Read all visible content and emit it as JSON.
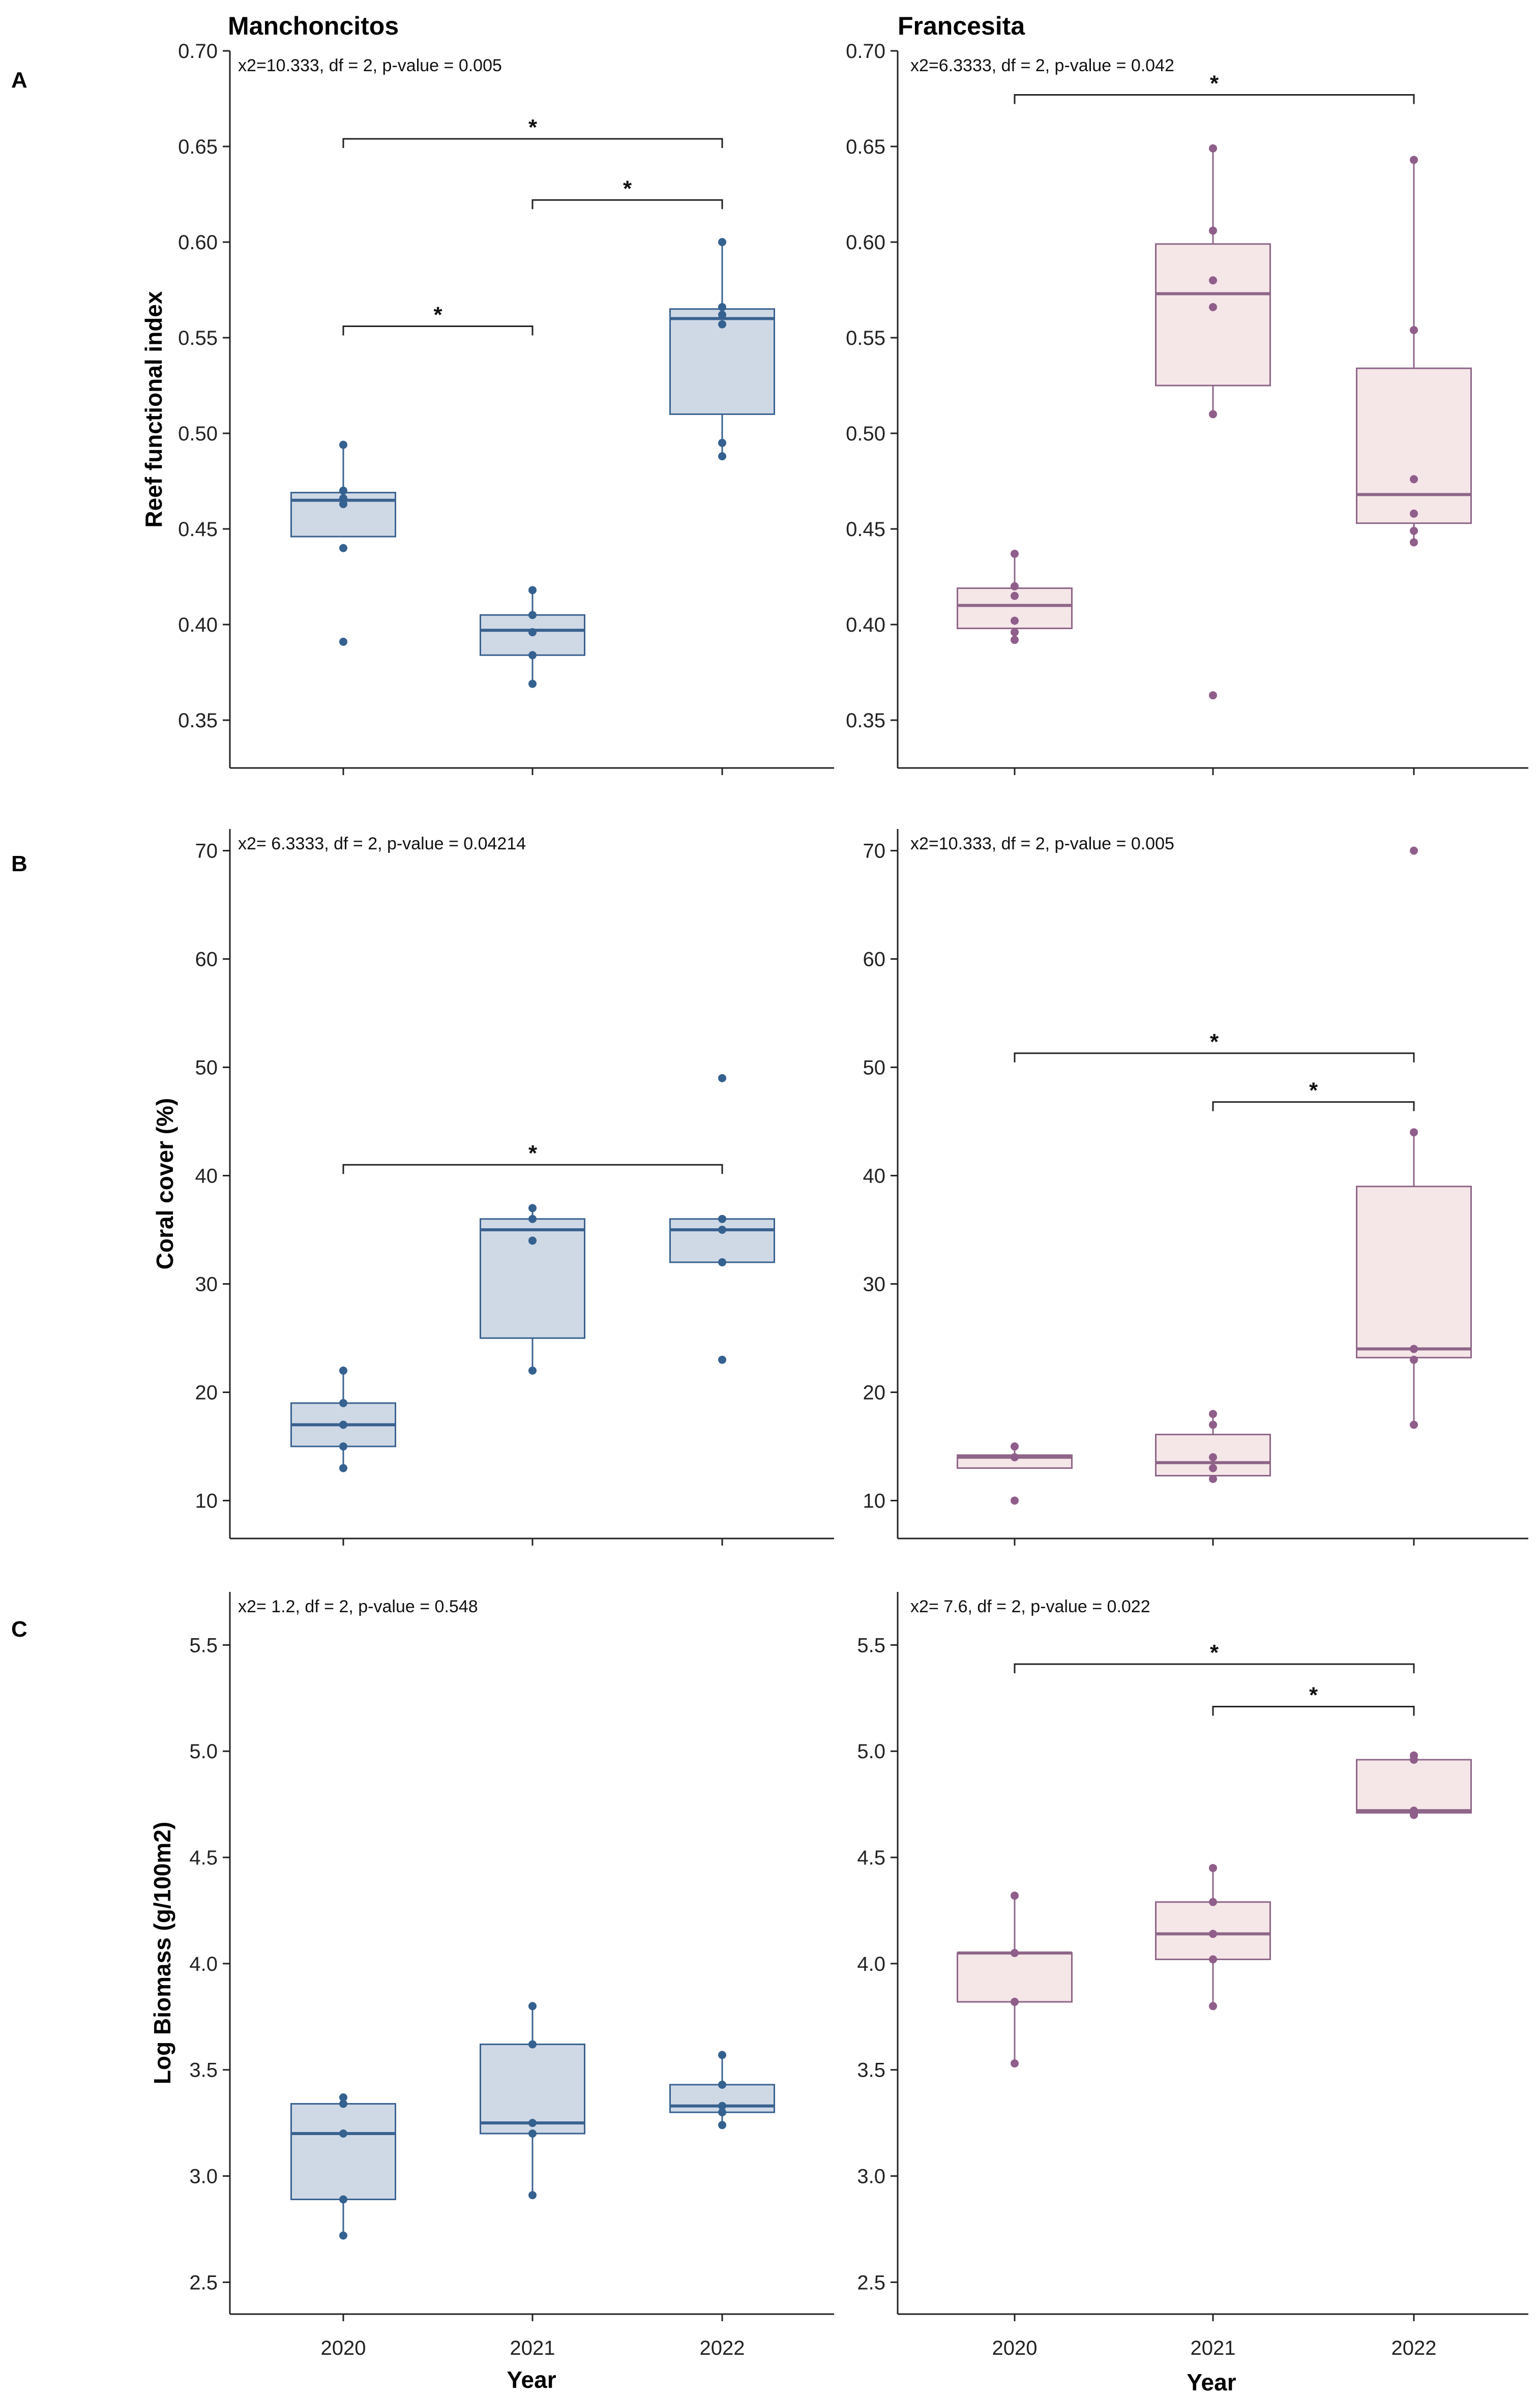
{
  "figure": {
    "col_titles": [
      "Manchoncitos",
      "Francesita"
    ],
    "row_labels": [
      "A",
      "B",
      "C"
    ],
    "xlabel": "Year",
    "colors": {
      "blue_stroke": "#3a6290",
      "blue_fill": "#cfd9e6",
      "blue_point": "#34618f",
      "pink_stroke": "#8e6688",
      "pink_fill": "#f5e6e8",
      "pink_point": "#8f5e8a"
    }
  },
  "chart_data": [
    {
      "id": "A-Manchoncitos",
      "type": "box",
      "row": 0,
      "col": 0,
      "palette": "blue",
      "stat": "x2=10.333, df = 2, p-value = 0.005",
      "ylabel": "Reef functional index",
      "ylim": [
        0.325,
        0.7
      ],
      "yticks": [
        0.35,
        0.4,
        0.45,
        0.5,
        0.55,
        0.6,
        0.65,
        0.7
      ],
      "ytick_labels": [
        "0.35",
        "0.40",
        "0.45",
        "0.50",
        "0.55",
        "0.60",
        "0.65",
        "0.70"
      ],
      "categories": [
        "2020",
        "2021",
        "2022"
      ],
      "show_xticks": false,
      "boxes": [
        {
          "cat": "2020",
          "q1": 0.446,
          "median": 0.465,
          "q3": 0.469,
          "whisker_low": 0.446,
          "whisker_high": 0.494,
          "points": [
            0.494,
            0.47,
            0.466,
            0.463,
            0.44,
            0.391
          ]
        },
        {
          "cat": "2021",
          "q1": 0.384,
          "median": 0.397,
          "q3": 0.405,
          "whisker_low": 0.369,
          "whisker_high": 0.418,
          "points": [
            0.418,
            0.405,
            0.396,
            0.384,
            0.369
          ]
        },
        {
          "cat": "2022",
          "q1": 0.51,
          "median": 0.56,
          "q3": 0.565,
          "whisker_low": 0.488,
          "whisker_high": 0.6,
          "points": [
            0.6,
            0.566,
            0.562,
            0.557,
            0.495,
            0.488
          ]
        }
      ],
      "brackets": [
        {
          "from": "2020",
          "to": "2021",
          "y": 0.556,
          "label": "*"
        },
        {
          "from": "2021",
          "to": "2022",
          "y": 0.622,
          "label": "*"
        },
        {
          "from": "2020",
          "to": "2022",
          "y": 0.654,
          "label": "*"
        }
      ]
    },
    {
      "id": "A-Francesita",
      "type": "box",
      "row": 0,
      "col": 1,
      "palette": "pink",
      "stat": "x2=6.3333, df = 2, p-value = 0.042",
      "ylabel": "",
      "ylim": [
        0.325,
        0.7
      ],
      "yticks": [
        0.35,
        0.4,
        0.45,
        0.5,
        0.55,
        0.6,
        0.65,
        0.7
      ],
      "ytick_labels": [
        "0.35",
        "0.40",
        "0.45",
        "0.50",
        "0.55",
        "0.60",
        "0.65",
        "0.70"
      ],
      "categories": [
        "2020",
        "2021",
        "2022"
      ],
      "show_xticks": false,
      "boxes": [
        {
          "cat": "2020",
          "q1": 0.398,
          "median": 0.41,
          "q3": 0.419,
          "whisker_low": 0.392,
          "whisker_high": 0.437,
          "points": [
            0.437,
            0.42,
            0.415,
            0.402,
            0.396,
            0.392
          ]
        },
        {
          "cat": "2021",
          "q1": 0.525,
          "median": 0.573,
          "q3": 0.599,
          "whisker_low": 0.51,
          "whisker_high": 0.649,
          "points": [
            0.649,
            0.606,
            0.58,
            0.566,
            0.51,
            0.363
          ]
        },
        {
          "cat": "2022",
          "q1": 0.453,
          "median": 0.468,
          "q3": 0.534,
          "whisker_low": 0.443,
          "whisker_high": 0.643,
          "points": [
            0.643,
            0.554,
            0.476,
            0.458,
            0.449,
            0.443
          ]
        }
      ],
      "brackets": [
        {
          "from": "2020",
          "to": "2022",
          "y": 0.677,
          "label": "*"
        }
      ]
    },
    {
      "id": "B-Manchoncitos",
      "type": "box",
      "row": 1,
      "col": 0,
      "palette": "blue",
      "stat": "x2= 6.3333, df = 2, p-value = 0.04214",
      "ylabel": "Coral cover (%)",
      "ylim": [
        6.5,
        72
      ],
      "yticks": [
        10,
        20,
        30,
        40,
        50,
        60,
        70
      ],
      "ytick_labels": [
        "10",
        "20",
        "30",
        "40",
        "50",
        "60",
        "70"
      ],
      "categories": [
        "2020",
        "2021",
        "2022"
      ],
      "show_xticks": false,
      "boxes": [
        {
          "cat": "2020",
          "q1": 15,
          "median": 17,
          "q3": 19,
          "whisker_low": 13,
          "whisker_high": 22,
          "points": [
            22,
            19,
            17,
            15,
            13
          ]
        },
        {
          "cat": "2021",
          "q1": 25,
          "median": 35,
          "q3": 36,
          "whisker_low": 22,
          "whisker_high": 37,
          "points": [
            37,
            36,
            34,
            22
          ]
        },
        {
          "cat": "2022",
          "q1": 32,
          "median": 35,
          "q3": 36,
          "whisker_low": 32,
          "whisker_high": 36,
          "points": [
            49,
            36,
            35,
            32,
            23
          ]
        }
      ],
      "brackets": [
        {
          "from": "2020",
          "to": "2022",
          "y": 41,
          "label": "*"
        }
      ]
    },
    {
      "id": "B-Francesita",
      "type": "box",
      "row": 1,
      "col": 1,
      "palette": "pink",
      "stat": "x2=10.333, df = 2, p-value = 0.005",
      "ylabel": "",
      "ylim": [
        6.5,
        72
      ],
      "yticks": [
        10,
        20,
        30,
        40,
        50,
        60,
        70
      ],
      "ytick_labels": [
        "10",
        "20",
        "30",
        "40",
        "50",
        "60",
        "70"
      ],
      "categories": [
        "2020",
        "2021",
        "2022"
      ],
      "show_xticks": false,
      "boxes": [
        {
          "cat": "2020",
          "q1": 13,
          "median": 14,
          "q3": 14.2,
          "whisker_low": 13,
          "whisker_high": 15,
          "points": [
            15,
            14,
            10
          ]
        },
        {
          "cat": "2021",
          "q1": 12.3,
          "median": 13.5,
          "q3": 16.1,
          "whisker_low": 12,
          "whisker_high": 18,
          "points": [
            18,
            17,
            14,
            13,
            12
          ]
        },
        {
          "cat": "2022",
          "q1": 23.2,
          "median": 24,
          "q3": 39,
          "whisker_low": 17,
          "whisker_high": 44,
          "points": [
            70,
            44,
            24,
            23,
            17
          ]
        }
      ],
      "brackets": [
        {
          "from": "2020",
          "to": "2022",
          "y": 51.3,
          "label": "*"
        },
        {
          "from": "2021",
          "to": "2022",
          "y": 46.8,
          "label": "*"
        }
      ]
    },
    {
      "id": "C-Manchoncitos",
      "type": "box",
      "row": 2,
      "col": 0,
      "palette": "blue",
      "stat": "x2= 1.2, df = 2, p-value = 0.548",
      "ylabel": "Log Biomass (g/100m2)",
      "ylim": [
        2.35,
        5.75
      ],
      "yticks": [
        2.5,
        3.0,
        3.5,
        4.0,
        4.5,
        5.0,
        5.5
      ],
      "ytick_labels": [
        "2.5",
        "3.0",
        "3.5",
        "4.0",
        "4.5",
        "5.0",
        "5.5"
      ],
      "categories": [
        "2020",
        "2021",
        "2022"
      ],
      "show_xticks": true,
      "boxes": [
        {
          "cat": "2020",
          "q1": 2.89,
          "median": 3.2,
          "q3": 3.34,
          "whisker_low": 2.72,
          "whisker_high": 3.37,
          "points": [
            3.37,
            3.34,
            3.2,
            2.89,
            2.72
          ]
        },
        {
          "cat": "2021",
          "q1": 3.2,
          "median": 3.25,
          "q3": 3.62,
          "whisker_low": 2.91,
          "whisker_high": 3.8,
          "points": [
            3.8,
            3.62,
            3.25,
            3.2,
            2.91
          ]
        },
        {
          "cat": "2022",
          "q1": 3.3,
          "median": 3.33,
          "q3": 3.43,
          "whisker_low": 3.24,
          "whisker_high": 3.57,
          "points": [
            3.57,
            3.43,
            3.33,
            3.3,
            3.24
          ]
        }
      ],
      "brackets": []
    },
    {
      "id": "C-Francesita",
      "type": "box",
      "row": 2,
      "col": 1,
      "palette": "pink",
      "stat": "x2= 7.6, df = 2, p-value = 0.022",
      "ylabel": "",
      "ylim": [
        2.35,
        5.75
      ],
      "yticks": [
        2.5,
        3.0,
        3.5,
        4.0,
        4.5,
        5.0,
        5.5
      ],
      "ytick_labels": [
        "2.5",
        "3.0",
        "3.5",
        "4.0",
        "4.5",
        "5.0",
        "5.5"
      ],
      "categories": [
        "2020",
        "2021",
        "2022"
      ],
      "show_xticks": true,
      "boxes": [
        {
          "cat": "2020",
          "q1": 3.82,
          "median": 4.05,
          "q3": 4.05,
          "whisker_low": 3.53,
          "whisker_high": 4.32,
          "points": [
            4.32,
            4.05,
            3.82,
            3.53
          ]
        },
        {
          "cat": "2021",
          "q1": 4.02,
          "median": 4.14,
          "q3": 4.29,
          "whisker_low": 3.8,
          "whisker_high": 4.45,
          "points": [
            4.45,
            4.29,
            4.14,
            4.02,
            3.8
          ]
        },
        {
          "cat": "2022",
          "q1": 4.71,
          "median": 4.72,
          "q3": 4.96,
          "whisker_low": 4.7,
          "whisker_high": 4.98,
          "points": [
            4.98,
            4.96,
            4.72,
            4.71,
            4.7
          ]
        }
      ],
      "brackets": [
        {
          "from": "2020",
          "to": "2022",
          "y": 5.41,
          "label": "*"
        },
        {
          "from": "2021",
          "to": "2022",
          "y": 5.21,
          "label": "*"
        }
      ]
    }
  ]
}
